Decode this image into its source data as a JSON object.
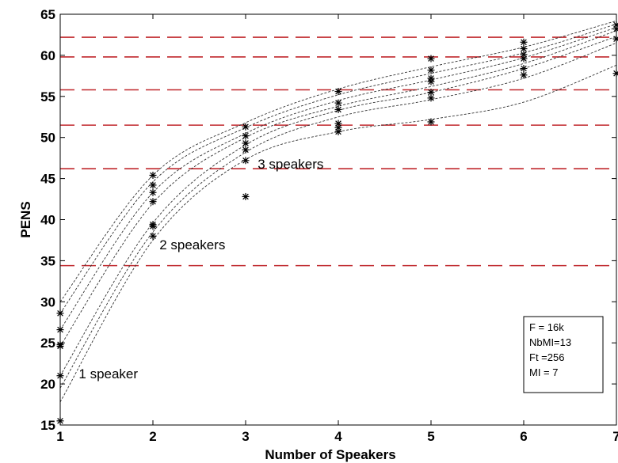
{
  "chart_data": {
    "type": "scatter",
    "xlabel": "Number of Speakers",
    "ylabel": "PENS",
    "xlim": [
      1,
      7
    ],
    "ylim": [
      15,
      65
    ],
    "xticks": [
      1,
      2,
      3,
      4,
      5,
      6,
      7
    ],
    "yticks": [
      15,
      20,
      25,
      30,
      35,
      40,
      45,
      50,
      55,
      60,
      65
    ],
    "grid": false,
    "threshold_lines": [
      34.4,
      46.2,
      51.5,
      55.8,
      59.8,
      62.2
    ],
    "threshold_color": "#c0282d",
    "marker": "asterisk",
    "points": [
      {
        "x": 1,
        "y": 15.5
      },
      {
        "x": 1,
        "y": 21.0
      },
      {
        "x": 1,
        "y": 24.6
      },
      {
        "x": 1,
        "y": 24.8
      },
      {
        "x": 1,
        "y": 26.6
      },
      {
        "x": 1,
        "y": 28.6
      },
      {
        "x": 2,
        "y": 38.0
      },
      {
        "x": 2,
        "y": 39.2
      },
      {
        "x": 2,
        "y": 39.4
      },
      {
        "x": 2,
        "y": 42.2
      },
      {
        "x": 2,
        "y": 43.3
      },
      {
        "x": 2,
        "y": 44.2
      },
      {
        "x": 2,
        "y": 45.4
      },
      {
        "x": 3,
        "y": 42.8
      },
      {
        "x": 3,
        "y": 47.2
      },
      {
        "x": 3,
        "y": 48.5
      },
      {
        "x": 3,
        "y": 49.3
      },
      {
        "x": 3,
        "y": 50.2
      },
      {
        "x": 3,
        "y": 51.3
      },
      {
        "x": 4,
        "y": 50.7
      },
      {
        "x": 4,
        "y": 51.2
      },
      {
        "x": 4,
        "y": 51.7
      },
      {
        "x": 4,
        "y": 53.4
      },
      {
        "x": 4,
        "y": 54.2
      },
      {
        "x": 4,
        "y": 55.6
      },
      {
        "x": 5,
        "y": 51.9
      },
      {
        "x": 5,
        "y": 54.8
      },
      {
        "x": 5,
        "y": 55.5
      },
      {
        "x": 5,
        "y": 56.8
      },
      {
        "x": 5,
        "y": 57.2
      },
      {
        "x": 5,
        "y": 58.2
      },
      {
        "x": 5,
        "y": 59.6
      },
      {
        "x": 6,
        "y": 57.6
      },
      {
        "x": 6,
        "y": 58.4
      },
      {
        "x": 6,
        "y": 59.6
      },
      {
        "x": 6,
        "y": 60.1
      },
      {
        "x": 6,
        "y": 60.8
      },
      {
        "x": 6,
        "y": 61.6
      },
      {
        "x": 7,
        "y": 57.8
      },
      {
        "x": 7,
        "y": 62.0
      },
      {
        "x": 7,
        "y": 63.2
      },
      {
        "x": 7,
        "y": 63.7
      }
    ],
    "series": [
      {
        "x": [
          1,
          2,
          3,
          4,
          5,
          6,
          7
        ],
        "y": [
          17.8,
          37.5,
          47.3,
          50.7,
          52.2,
          54.3,
          58.8
        ]
      },
      {
        "x": [
          1,
          2,
          3,
          4,
          5,
          6,
          7
        ],
        "y": [
          19.5,
          38.5,
          48.2,
          52.5,
          54.6,
          57.2,
          61.5
        ]
      },
      {
        "x": [
          1,
          2,
          3,
          4,
          5,
          6,
          7
        ],
        "y": [
          21.0,
          39.6,
          49.1,
          53.3,
          55.5,
          58.4,
          62.3
        ]
      },
      {
        "x": [
          1,
          2,
          3,
          4,
          5,
          6,
          7
        ],
        "y": [
          24.6,
          42.0,
          50.0,
          53.8,
          56.2,
          59.0,
          63.0
        ]
      },
      {
        "x": [
          1,
          2,
          3,
          4,
          5,
          6,
          7
        ],
        "y": [
          26.6,
          43.3,
          50.5,
          54.5,
          57.0,
          59.7,
          63.4
        ]
      },
      {
        "x": [
          1,
          2,
          3,
          4,
          5,
          6,
          7
        ],
        "y": [
          28.6,
          44.6,
          51.2,
          55.2,
          57.8,
          60.3,
          63.8
        ]
      },
      {
        "x": [
          1,
          2,
          3,
          4,
          5,
          6,
          7
        ],
        "y": [
          30.0,
          45.4,
          51.8,
          55.9,
          58.6,
          61.0,
          64.2
        ]
      }
    ],
    "annotations": [
      {
        "text": "1 speaker",
        "x": 1.2,
        "y": 20.7
      },
      {
        "text": "2 speakers",
        "x": 2.07,
        "y": 36.4
      },
      {
        "text": "3 speakers",
        "x": 3.13,
        "y": 46.2
      }
    ],
    "info_box": [
      "F = 16k",
      "NbMI=13",
      "Ft    =256",
      "MI    = 7"
    ]
  }
}
